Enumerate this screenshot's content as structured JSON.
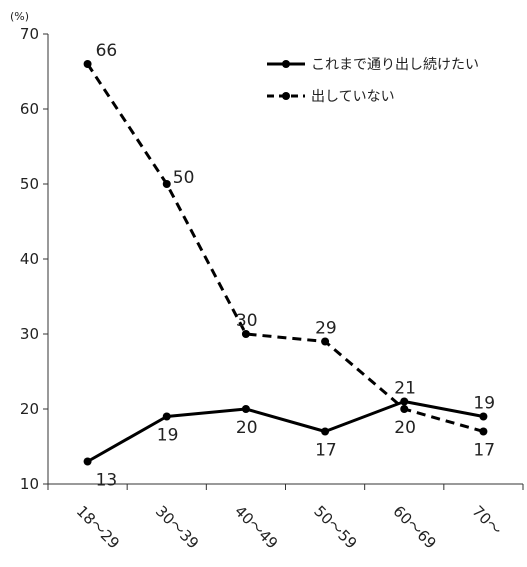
{
  "chart_data": {
    "type": "line",
    "categories": [
      "18～29",
      "30～39",
      "40～49",
      "50～59",
      "60～69",
      "70～"
    ],
    "series": [
      {
        "name": "これまで通り出し続けたい",
        "values": [
          13,
          19,
          20,
          17,
          21,
          19
        ],
        "style": "solid",
        "color": "#000000"
      },
      {
        "name": "出していない",
        "values": [
          66,
          50,
          30,
          29,
          20,
          17
        ],
        "style": "dashed",
        "color": "#000000"
      }
    ],
    "y_unit": "(%)",
    "ylim": [
      10,
      70
    ],
    "yticks": [
      10,
      20,
      30,
      40,
      50,
      60,
      70
    ],
    "grid": false,
    "legend_position": "top-right"
  }
}
